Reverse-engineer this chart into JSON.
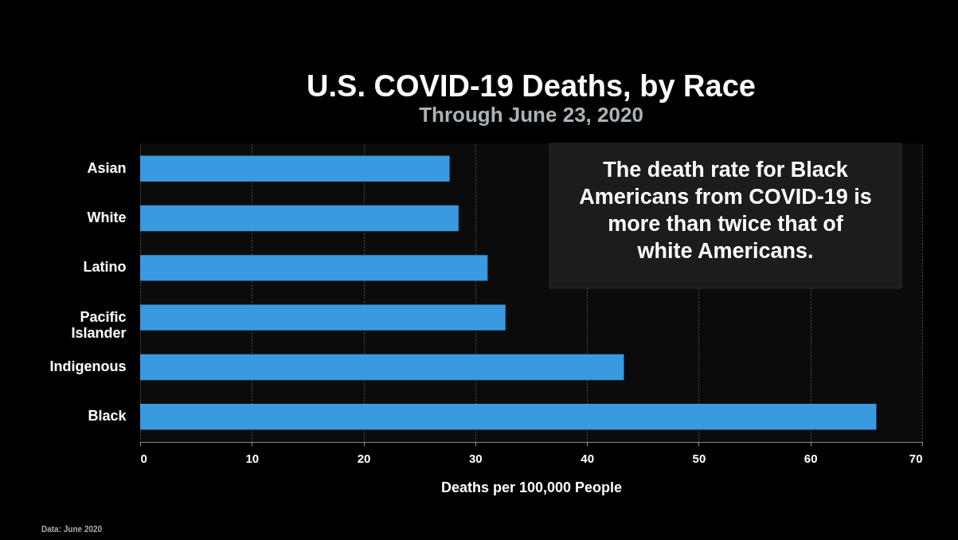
{
  "chart_data": {
    "type": "bar",
    "orientation": "horizontal",
    "title": "U.S. COVID-19 Deaths, by Race",
    "subtitle": "Through June 23, 2020",
    "categories": [
      "Asian",
      "White",
      "Latino",
      "Pacific Islander",
      "Indigenous",
      "Black"
    ],
    "values": [
      27.7,
      28.5,
      31.1,
      32.7,
      43.3,
      65.9
    ],
    "color": "#3a9ae0",
    "xlim": [
      0,
      70
    ],
    "xticks": [
      0,
      10,
      20,
      30,
      40,
      50,
      60,
      70
    ],
    "xlabel": "Deaths per 100,000 People",
    "grid": "x",
    "annotations": [
      "The death rate for Black Americans from COVID-19 is more than twice that of white Americans.",
      "Data: June 2020"
    ]
  }
}
